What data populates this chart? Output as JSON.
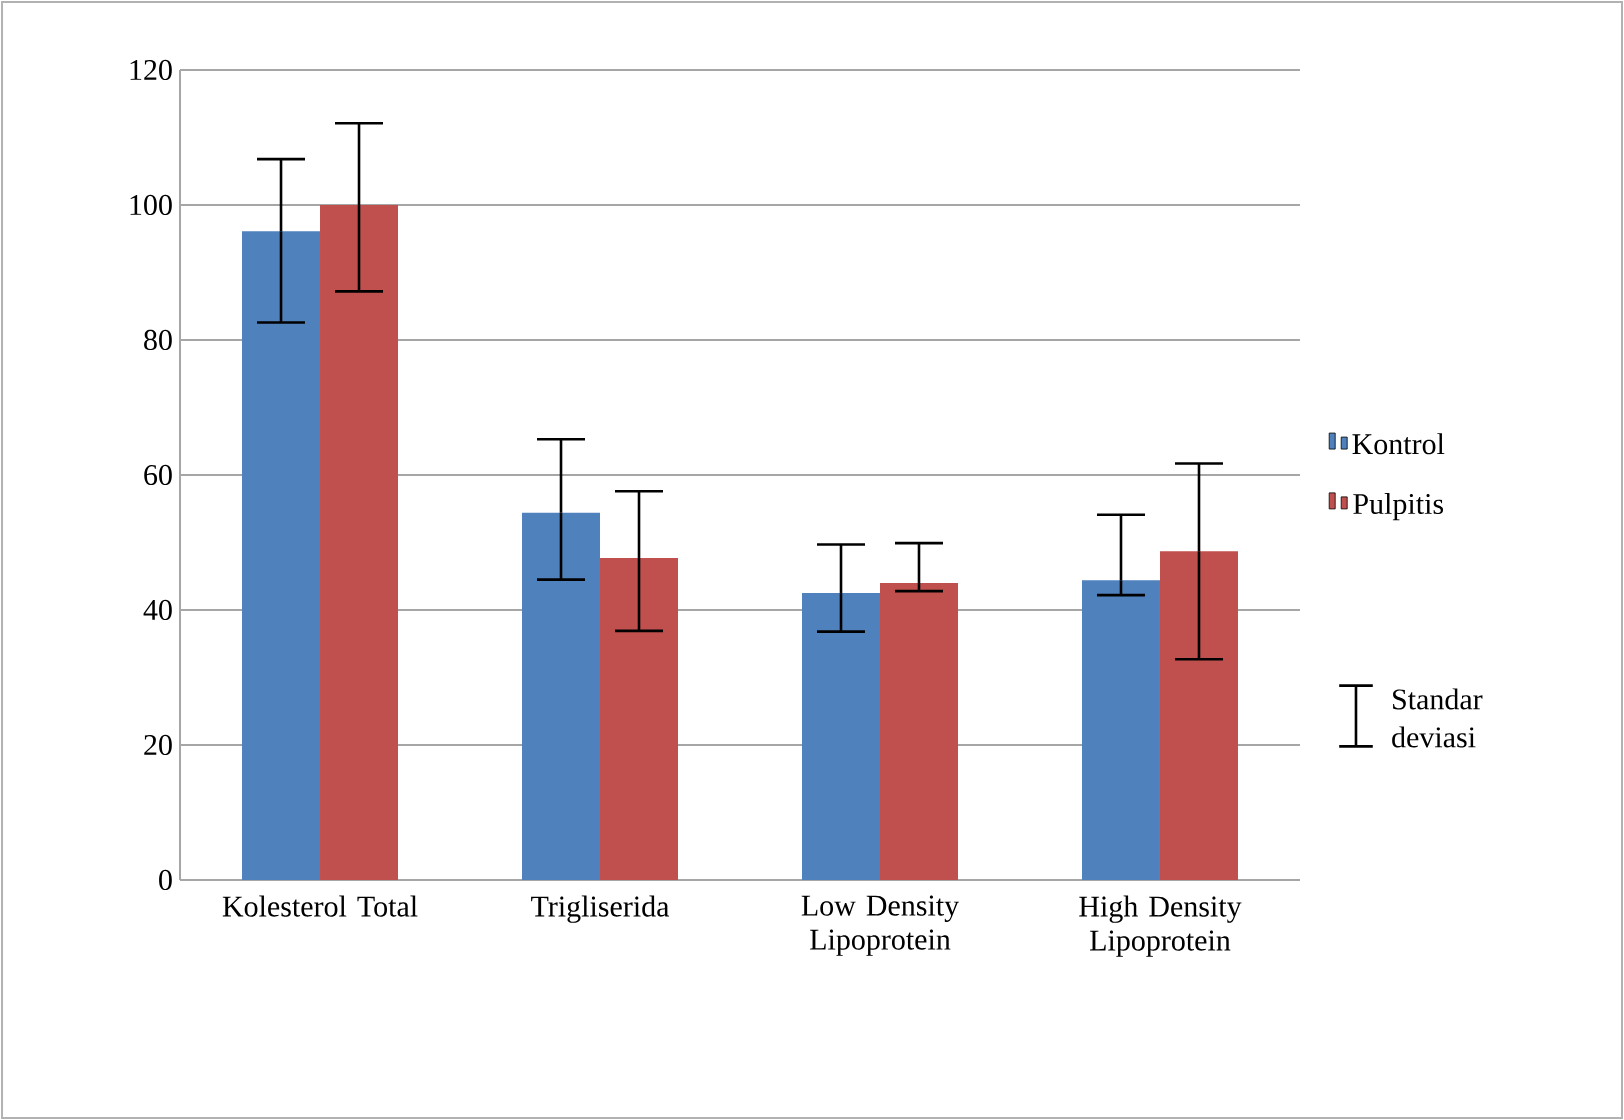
{
  "chart_data": {
    "type": "bar",
    "categories": [
      "Kolesterol Total",
      "Trigliserida",
      "Low Density Lipoprotein",
      "High Density Lipoprotein"
    ],
    "series": [
      {
        "name": "Kontrol",
        "color": "#4f81bd",
        "values": [
          96.1,
          54.4,
          42.5,
          44.4
        ],
        "errors": [
          [
            82.6,
            106.8
          ],
          [
            44.5,
            65.3
          ],
          [
            36.8,
            49.7
          ],
          [
            42.2,
            54.1
          ]
        ]
      },
      {
        "name": "Pulpitis",
        "color": "#c0504d",
        "values": [
          100,
          47.7,
          44,
          48.7
        ],
        "errors": [
          [
            87.2,
            112.1
          ],
          [
            36.9,
            57.6
          ],
          [
            42.8,
            49.9
          ],
          [
            32.7,
            61.7
          ]
        ]
      }
    ],
    "ylim": [
      0,
      120
    ],
    "yticks": [
      0,
      20,
      40,
      60,
      80,
      100,
      120
    ],
    "grid": "y",
    "legend": "right",
    "annotations": [
      "Standar deviasi"
    ]
  }
}
